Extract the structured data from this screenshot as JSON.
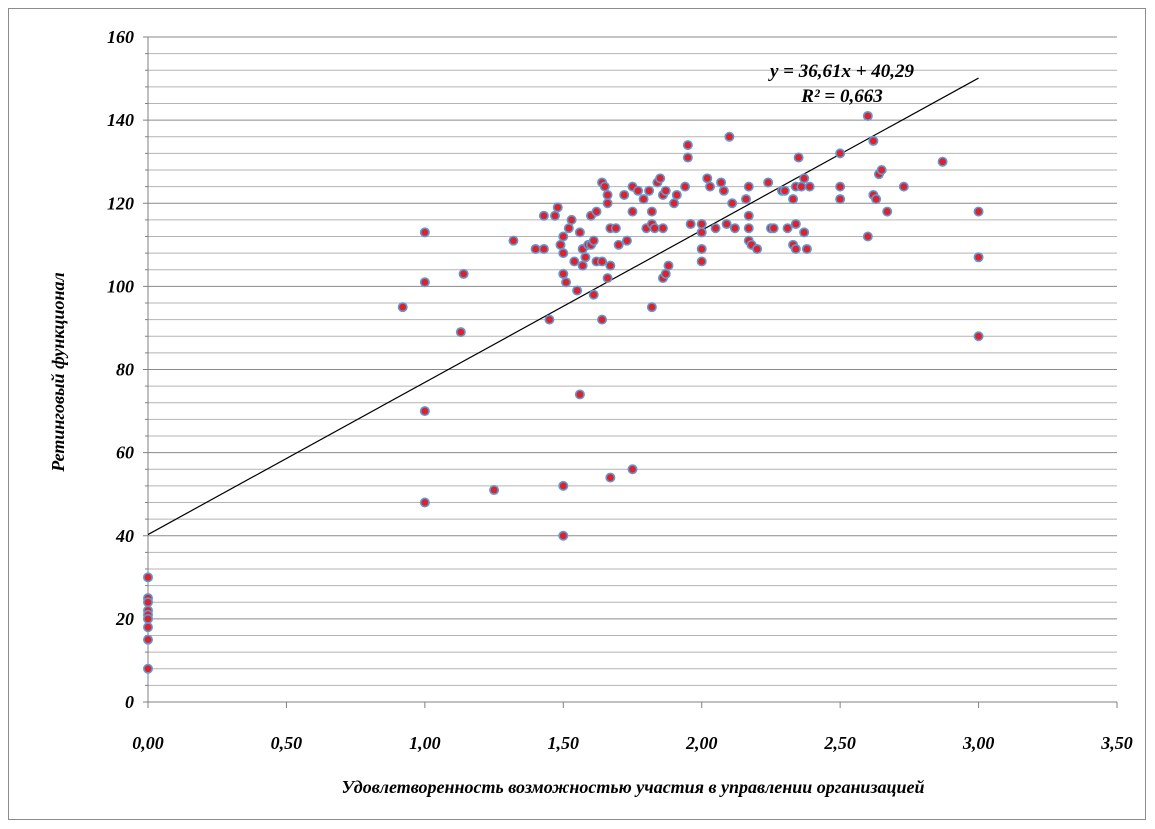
{
  "chart_data": {
    "type": "scatter",
    "xlabel": "Удовлетворенность возможностью участия в управлении организацией",
    "ylabel": "Ретинговый функционал",
    "xlim": [
      0,
      3.5
    ],
    "ylim": [
      0,
      160
    ],
    "x_ticks": [
      "0,00",
      "0,50",
      "1,00",
      "1,50",
      "2,00",
      "2,50",
      "3,00",
      "3,50"
    ],
    "y_ticks": [
      "0",
      "20",
      "40",
      "60",
      "80",
      "100",
      "120",
      "140",
      "160"
    ],
    "major_grid_step": 20,
    "minor_grid_step": 4,
    "grid": true,
    "marker_fill": "#e0202a",
    "marker_stroke": "#5b9bd5",
    "trendline": {
      "slope": 36.61,
      "intercept": 40.29,
      "x_range": [
        0,
        3.0
      ],
      "equation": "y = 36,61x + 40,29",
      "r2": "R² = 0,663"
    },
    "points": [
      [
        0,
        30
      ],
      [
        0,
        25
      ],
      [
        0,
        24
      ],
      [
        0,
        22
      ],
      [
        0,
        21
      ],
      [
        0,
        20
      ],
      [
        0,
        18
      ],
      [
        0,
        15
      ],
      [
        0,
        8
      ],
      [
        0.92,
        95
      ],
      [
        1.0,
        113
      ],
      [
        1.0,
        101
      ],
      [
        1.0,
        70
      ],
      [
        1.0,
        48
      ],
      [
        1.13,
        89
      ],
      [
        1.14,
        103
      ],
      [
        1.25,
        51
      ],
      [
        1.32,
        111
      ],
      [
        1.4,
        109
      ],
      [
        1.43,
        109
      ],
      [
        1.43,
        117
      ],
      [
        1.45,
        92
      ],
      [
        1.47,
        117
      ],
      [
        1.48,
        119
      ],
      [
        1.49,
        110
      ],
      [
        1.5,
        103
      ],
      [
        1.5,
        112
      ],
      [
        1.5,
        108
      ],
      [
        1.51,
        101
      ],
      [
        1.5,
        52
      ],
      [
        1.5,
        40
      ],
      [
        1.52,
        114
      ],
      [
        1.53,
        116
      ],
      [
        1.54,
        106
      ],
      [
        1.55,
        99
      ],
      [
        1.56,
        113
      ],
      [
        1.56,
        74
      ],
      [
        1.57,
        109
      ],
      [
        1.57,
        105
      ],
      [
        1.58,
        107
      ],
      [
        1.59,
        110
      ],
      [
        1.6,
        117
      ],
      [
        1.6,
        110
      ],
      [
        1.61,
        98
      ],
      [
        1.61,
        111
      ],
      [
        1.62,
        106
      ],
      [
        1.62,
        118
      ],
      [
        1.64,
        106
      ],
      [
        1.64,
        125
      ],
      [
        1.64,
        92
      ],
      [
        1.65,
        124
      ],
      [
        1.66,
        120
      ],
      [
        1.66,
        102
      ],
      [
        1.66,
        122
      ],
      [
        1.67,
        114
      ],
      [
        1.67,
        105
      ],
      [
        1.67,
        54
      ],
      [
        1.69,
        114
      ],
      [
        1.7,
        110
      ],
      [
        1.72,
        122
      ],
      [
        1.73,
        111
      ],
      [
        1.75,
        124
      ],
      [
        1.75,
        118
      ],
      [
        1.75,
        56
      ],
      [
        1.77,
        123
      ],
      [
        1.79,
        121
      ],
      [
        1.8,
        114
      ],
      [
        1.81,
        123
      ],
      [
        1.82,
        118
      ],
      [
        1.82,
        115
      ],
      [
        1.82,
        95
      ],
      [
        1.83,
        114
      ],
      [
        1.84,
        125
      ],
      [
        1.85,
        126
      ],
      [
        1.86,
        122
      ],
      [
        1.86,
        114
      ],
      [
        1.87,
        123
      ],
      [
        1.86,
        102
      ],
      [
        1.87,
        103
      ],
      [
        1.88,
        105
      ],
      [
        1.9,
        120
      ],
      [
        1.91,
        122
      ],
      [
        1.94,
        124
      ],
      [
        1.95,
        134
      ],
      [
        1.95,
        131
      ],
      [
        1.96,
        115
      ],
      [
        2.0,
        113
      ],
      [
        2.0,
        115
      ],
      [
        2.0,
        109
      ],
      [
        2.0,
        106
      ],
      [
        2.02,
        126
      ],
      [
        2.03,
        124
      ],
      [
        2.05,
        114
      ],
      [
        2.07,
        125
      ],
      [
        2.08,
        123
      ],
      [
        2.09,
        115
      ],
      [
        2.1,
        136
      ],
      [
        2.11,
        120
      ],
      [
        2.12,
        114
      ],
      [
        2.16,
        121
      ],
      [
        2.17,
        124
      ],
      [
        2.17,
        117
      ],
      [
        2.17,
        114
      ],
      [
        2.17,
        111
      ],
      [
        2.18,
        110
      ],
      [
        2.2,
        109
      ],
      [
        2.24,
        125
      ],
      [
        2.25,
        114
      ],
      [
        2.26,
        114
      ],
      [
        2.29,
        123
      ],
      [
        2.3,
        123
      ],
      [
        2.31,
        114
      ],
      [
        2.33,
        110
      ],
      [
        2.33,
        121
      ],
      [
        2.34,
        124
      ],
      [
        2.34,
        115
      ],
      [
        2.34,
        109
      ],
      [
        2.35,
        131
      ],
      [
        2.36,
        124
      ],
      [
        2.37,
        126
      ],
      [
        2.37,
        113
      ],
      [
        2.38,
        109
      ],
      [
        2.39,
        124
      ],
      [
        2.5,
        132
      ],
      [
        2.5,
        124
      ],
      [
        2.5,
        121
      ],
      [
        2.6,
        141
      ],
      [
        2.6,
        112
      ],
      [
        2.62,
        135
      ],
      [
        2.62,
        122
      ],
      [
        2.63,
        121
      ],
      [
        2.64,
        127
      ],
      [
        2.65,
        128
      ],
      [
        2.67,
        118
      ],
      [
        2.73,
        124
      ],
      [
        2.87,
        130
      ],
      [
        3.0,
        118
      ],
      [
        3.0,
        107
      ],
      [
        3.0,
        88
      ]
    ]
  }
}
